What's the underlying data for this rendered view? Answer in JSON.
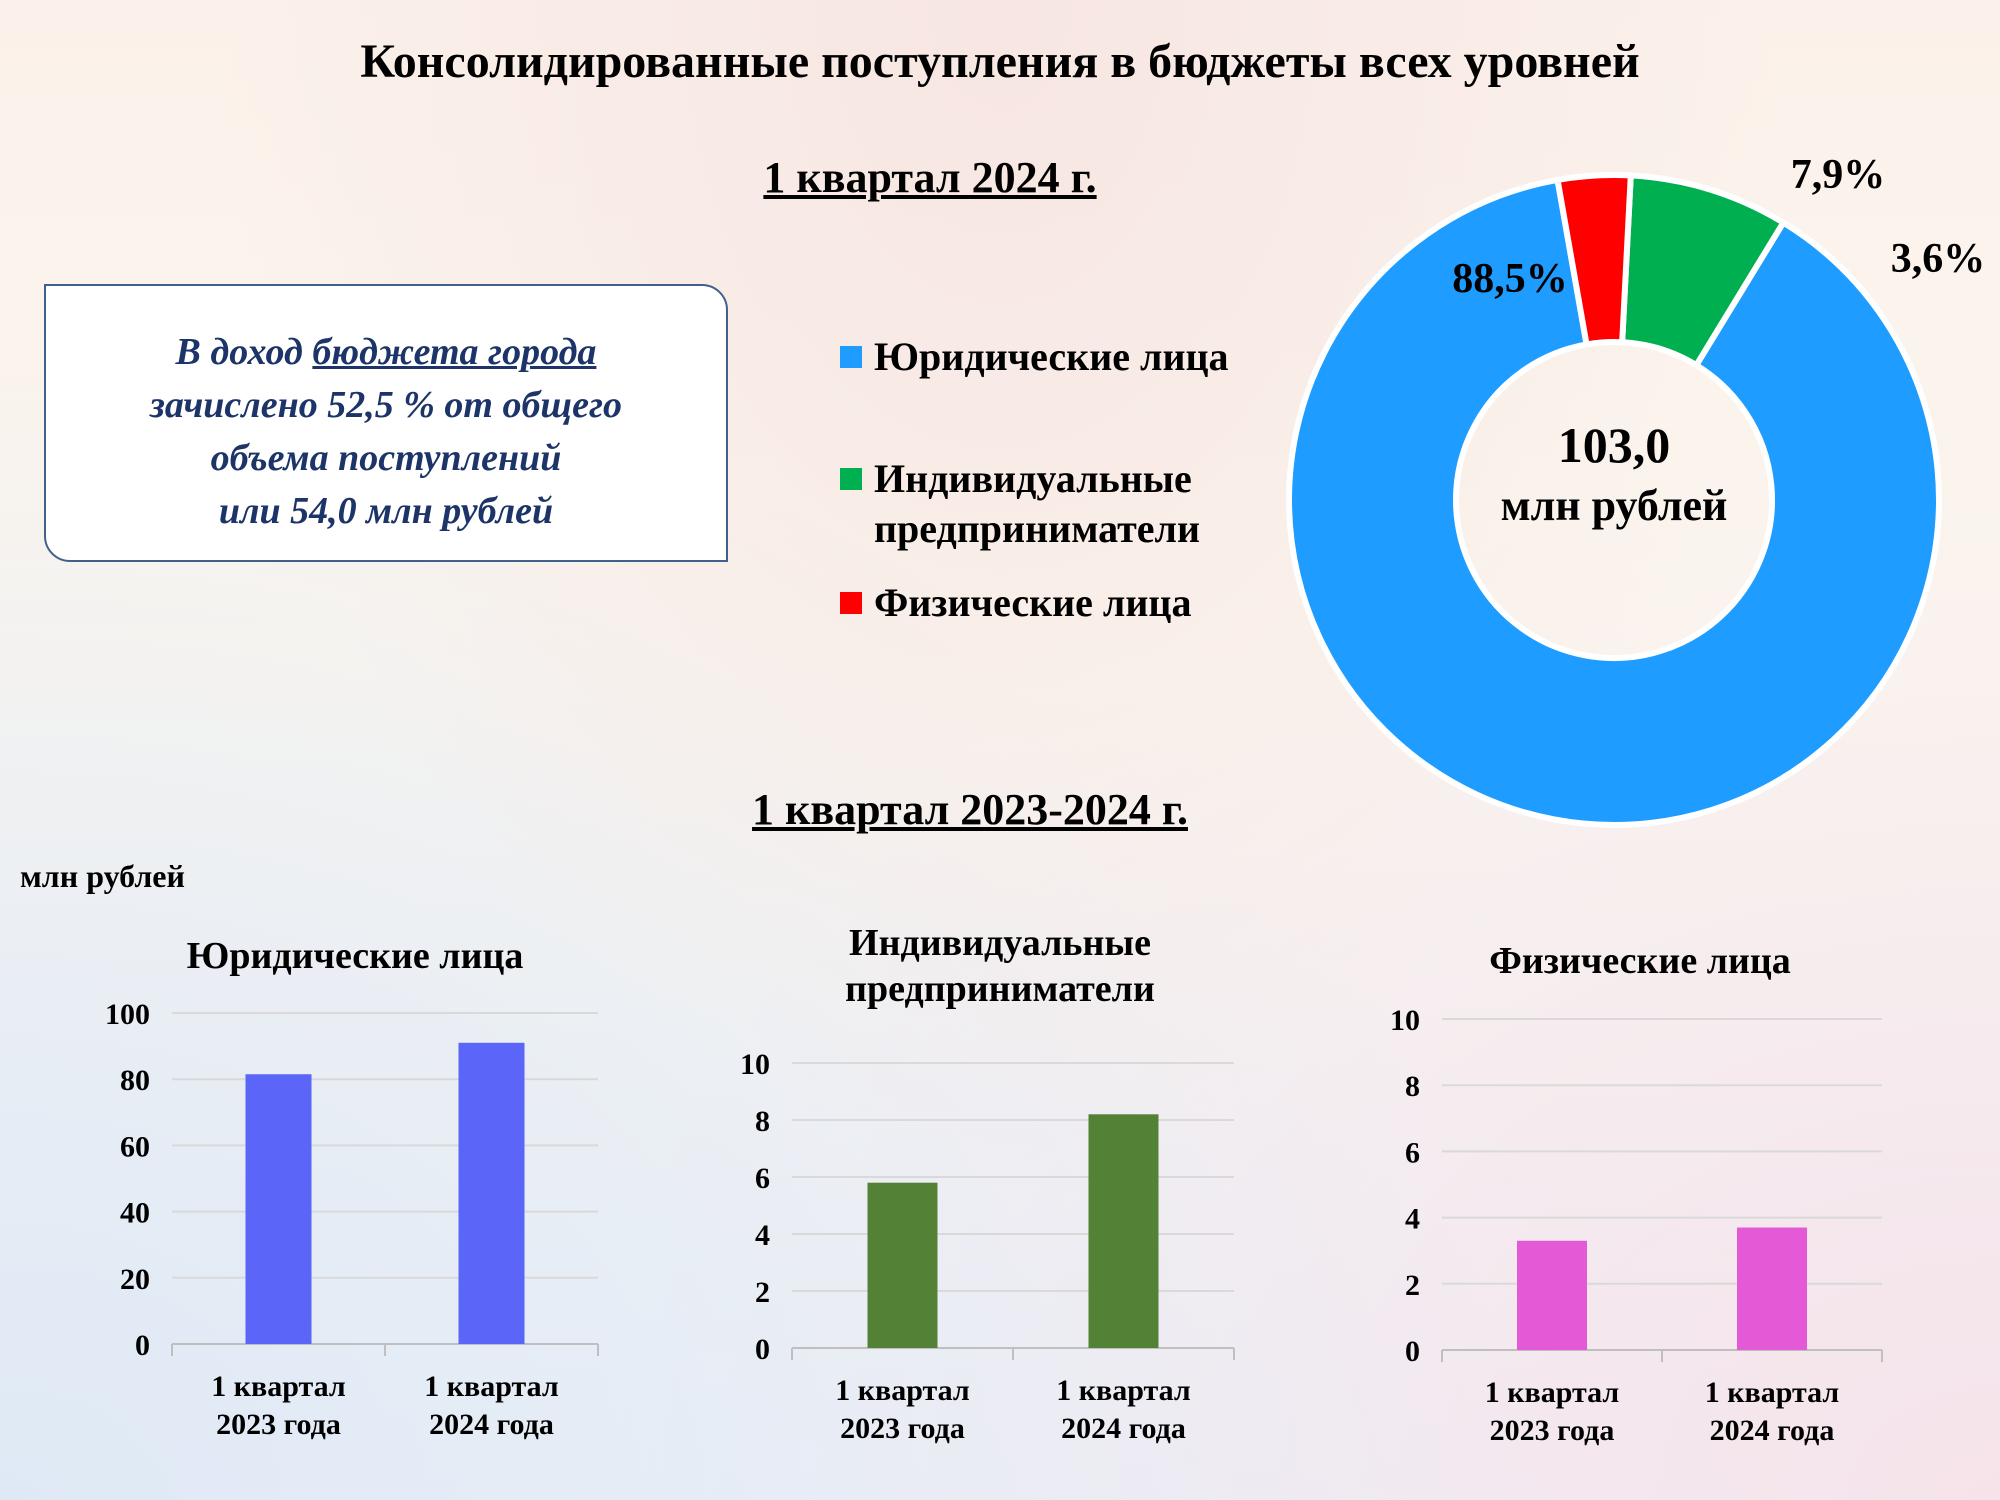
{
  "title": "Консолидированные поступления в бюджеты всех уровней",
  "subtitle_top": "1 квартал 2024 г.",
  "subtitle_bottom": "1 квартал 2023-2024 г.",
  "infobox": {
    "part1": "В доход ",
    "link": "бюджета города",
    "line2": "зачислено 52,5 % от общего",
    "line3": "объема поступлений",
    "line4": "или 54,0 млн рублей"
  },
  "legend": {
    "item1": "Юридические лица",
    "item2_line1": "Индивидуальные",
    "item2_line2": "предприниматели",
    "item3": "Физические лица"
  },
  "donut_center": {
    "value": "103,0",
    "unit": "млн рублей"
  },
  "unit_label": "млн рублей",
  "chart_data": [
    {
      "type": "pie",
      "variant": "donut",
      "categories": [
        "Юридические лица",
        "Индивидуальные предприниматели",
        "Физические лица"
      ],
      "values": [
        88.5,
        7.9,
        3.6
      ],
      "labels": [
        "88,5%",
        "7,9%",
        "3,6%"
      ],
      "colors": [
        "#1f9cff",
        "#00b050",
        "#ff0000"
      ],
      "total_label": "103,0 млн рублей"
    },
    {
      "type": "bar",
      "title": "Юридические лица",
      "categories": [
        "1 квартал 2023 года",
        "1 квартал 2024 года"
      ],
      "values": [
        81.5,
        91
      ],
      "ylim": [
        0,
        100
      ],
      "yticks": [
        "0",
        "20",
        "40",
        "60",
        "80",
        "100"
      ],
      "color": "#5b65f8",
      "grid": true
    },
    {
      "type": "bar",
      "title": "Индивидуальные предприниматели",
      "categories": [
        "1 квартал 2023 года",
        "1 квартал 2024 года"
      ],
      "values": [
        5.8,
        8.2
      ],
      "ylim": [
        0,
        10
      ],
      "yticks": [
        "0",
        "2",
        "4",
        "6",
        "8",
        "10"
      ],
      "color": "#538135",
      "grid": true
    },
    {
      "type": "bar",
      "title": "Физические лица",
      "categories": [
        "1 квартал 2023 года",
        "1 квартал 2024 года"
      ],
      "values": [
        3.3,
        3.7
      ],
      "ylim": [
        0,
        10
      ],
      "yticks": [
        "0",
        "2",
        "4",
        "6",
        "8",
        "10"
      ],
      "color": "#e45ad6",
      "grid": true
    }
  ]
}
